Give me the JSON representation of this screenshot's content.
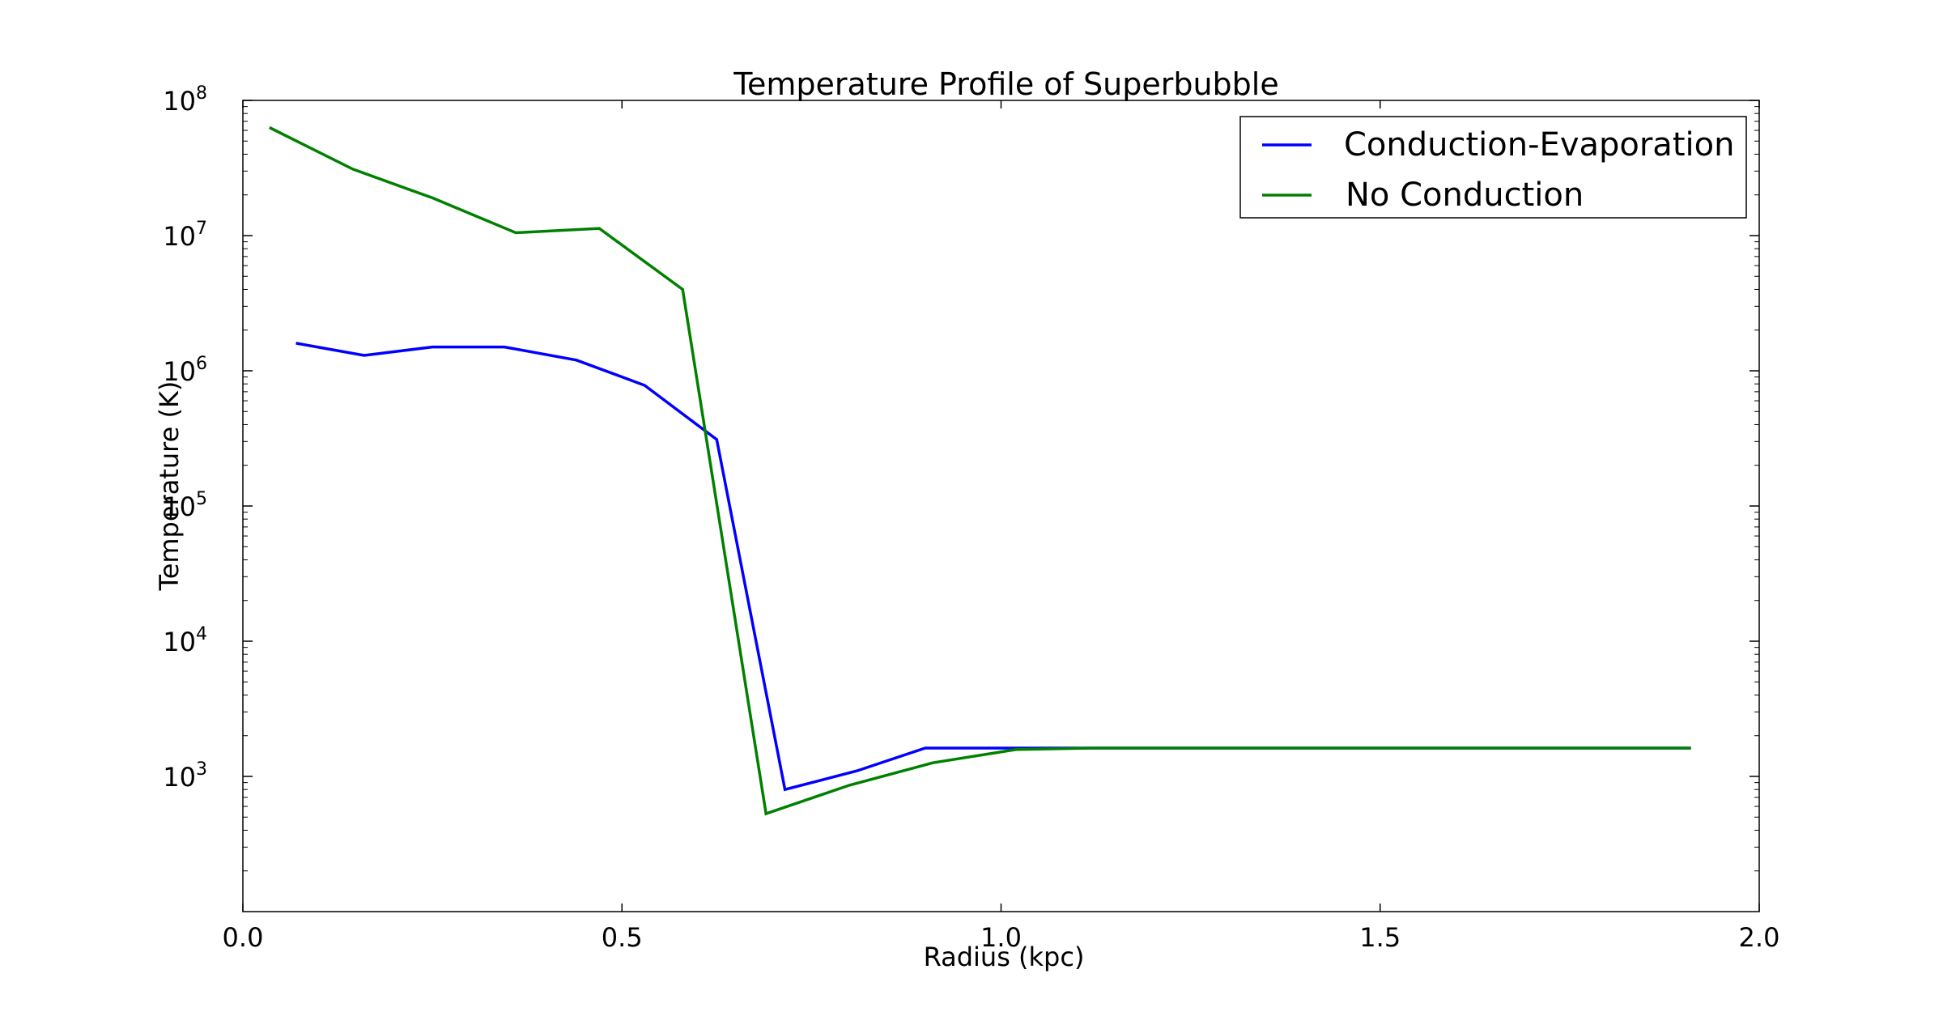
{
  "chart_data": {
    "type": "line",
    "title": "Temperature Profile of Superbubble",
    "xlabel": "Radius (kpc)",
    "ylabel": "Temperature (K)",
    "xlim": [
      0.0,
      2.0
    ],
    "ylim": [
      100,
      100000000
    ],
    "yscale": "log",
    "grid": false,
    "legend_position": "top-right",
    "x_ticks": [
      "0.0",
      "0.5",
      "1.0",
      "1.5",
      "2.0"
    ],
    "x_tick_values": [
      0.0,
      0.5,
      1.0,
      1.5,
      2.0
    ],
    "y_tick_values": [
      1000,
      10000,
      100000,
      1000000,
      10000000,
      100000000
    ],
    "y_tick_base": "10",
    "y_tick_exponents": [
      "3",
      "4",
      "5",
      "6",
      "7",
      "8"
    ],
    "series": [
      {
        "name": "Conduction-Evaporation",
        "color": "#0000ff",
        "points": [
          [
            0.07,
            1600000
          ],
          [
            0.16,
            1300000
          ],
          [
            0.25,
            1500000
          ],
          [
            0.345,
            1500000
          ],
          [
            0.44,
            1200000
          ],
          [
            0.53,
            780000
          ],
          [
            0.625,
            310000
          ],
          [
            0.715,
            800
          ],
          [
            0.81,
            1100
          ],
          [
            0.9,
            1620
          ],
          [
            1.0,
            1620
          ],
          [
            1.2,
            1620
          ],
          [
            1.5,
            1620
          ],
          [
            1.91,
            1620
          ]
        ]
      },
      {
        "name": "No Conduction",
        "color": "#008000",
        "points": [
          [
            0.035,
            63000000
          ],
          [
            0.145,
            31000000
          ],
          [
            0.25,
            19000000
          ],
          [
            0.36,
            10500000
          ],
          [
            0.47,
            11300000
          ],
          [
            0.58,
            4000000
          ],
          [
            0.69,
            530
          ],
          [
            0.8,
            860
          ],
          [
            0.91,
            1260
          ],
          [
            1.02,
            1580
          ],
          [
            1.12,
            1620
          ],
          [
            1.5,
            1620
          ],
          [
            1.91,
            1620
          ]
        ]
      }
    ]
  }
}
